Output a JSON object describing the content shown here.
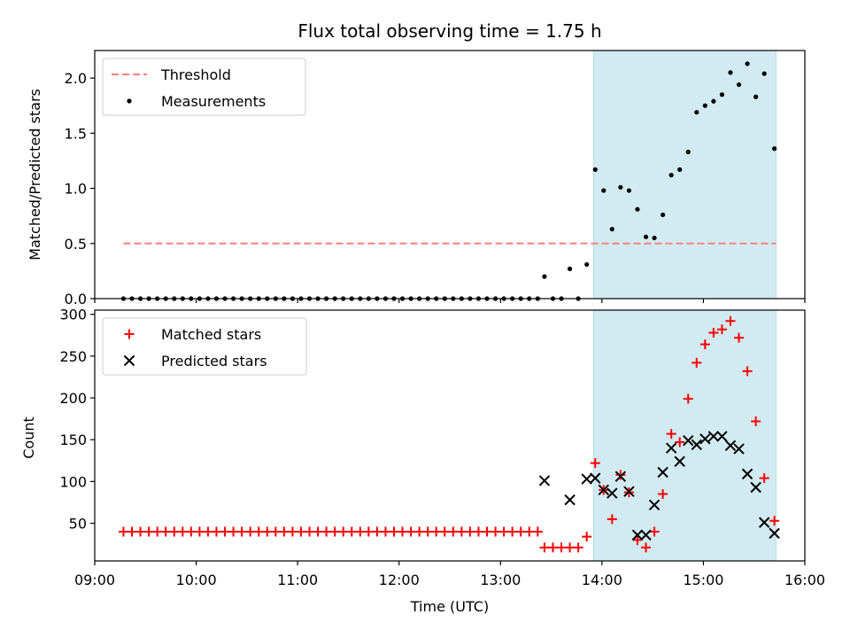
{
  "chart_data": [
    {
      "type": "scatter",
      "title": "Flux total observing time = 1.75 h",
      "xlabel": "",
      "ylabel": "Matched/Predicted stars",
      "ylim": [
        0,
        2.25
      ],
      "yticks": [
        "0.0",
        "0.5",
        "1.0",
        "1.5",
        "2.0"
      ],
      "ytick_values": [
        0,
        0.5,
        1.0,
        1.5,
        2.0
      ],
      "xlim": [
        "09:00",
        "16:00"
      ],
      "shaded_region": [
        "13:55",
        "15:43"
      ],
      "shade_color": "#add8e6",
      "grid": false,
      "legend_position": "upper left",
      "legend": [
        {
          "label": "Threshold",
          "marker": "dashed-line",
          "color": "#ff7f7f"
        },
        {
          "label": "Measurements",
          "marker": "dot",
          "color": "#000000"
        }
      ],
      "threshold": {
        "value": 0.5,
        "x_start": "09:17",
        "x_end": "15:43"
      },
      "series": [
        {
          "name": "Measurements",
          "color": "#000000",
          "x": [
            "09:17",
            "09:22",
            "09:27",
            "09:32",
            "09:37",
            "09:42",
            "09:47",
            "09:52",
            "09:57",
            "10:02",
            "10:07",
            "10:12",
            "10:17",
            "10:22",
            "10:27",
            "10:32",
            "10:37",
            "10:42",
            "10:47",
            "10:52",
            "10:57",
            "11:02",
            "11:07",
            "11:12",
            "11:17",
            "11:22",
            "11:27",
            "11:32",
            "11:37",
            "11:42",
            "11:47",
            "11:52",
            "11:57",
            "12:02",
            "12:07",
            "12:12",
            "12:17",
            "12:22",
            "12:27",
            "12:32",
            "12:37",
            "12:42",
            "12:47",
            "12:52",
            "12:57",
            "13:02",
            "13:07",
            "13:12",
            "13:17",
            "13:22",
            "13:26",
            "13:31",
            "13:36",
            "13:41",
            "13:46",
            "13:51",
            "13:56",
            "14:01",
            "14:06",
            "14:11",
            "14:16",
            "14:21",
            "14:26",
            "14:31",
            "14:36",
            "14:41",
            "14:46",
            "14:51",
            "14:56",
            "15:01",
            "15:06",
            "15:11",
            "15:16",
            "15:21",
            "15:26",
            "15:31",
            "15:36",
            "15:42"
          ],
          "y": [
            0,
            0,
            0,
            0,
            0,
            0,
            0,
            0,
            0,
            0,
            0,
            0,
            0,
            0,
            0,
            0,
            0,
            0,
            0,
            0,
            0,
            0,
            0,
            0,
            0,
            0,
            0,
            0,
            0,
            0,
            0,
            0,
            0,
            0,
            0,
            0,
            0,
            0,
            0,
            0,
            0,
            0,
            0,
            0,
            0,
            0,
            0,
            0,
            0,
            0,
            0.2,
            0,
            0,
            0.27,
            0,
            0.31,
            1.17,
            0.98,
            0.63,
            1.01,
            0.98,
            0.81,
            0.56,
            0.55,
            0.76,
            1.12,
            1.17,
            1.33,
            1.69,
            1.75,
            1.79,
            1.85,
            2.05,
            1.94,
            2.13,
            1.83,
            2.04,
            1.36
          ]
        }
      ]
    },
    {
      "type": "scatter",
      "title": "",
      "xlabel": "Time (UTC)",
      "ylabel": "Count",
      "ylim": [
        5,
        305
      ],
      "yticks": [
        "50",
        "100",
        "150",
        "200",
        "250",
        "300"
      ],
      "ytick_values": [
        50,
        100,
        150,
        200,
        250,
        300
      ],
      "xlim": [
        "09:00",
        "16:00"
      ],
      "xticks": [
        "09:00",
        "10:00",
        "11:00",
        "12:00",
        "13:00",
        "14:00",
        "15:00",
        "16:00"
      ],
      "shaded_region": [
        "13:55",
        "15:43"
      ],
      "shade_color": "#add8e6",
      "grid": false,
      "legend_position": "upper left",
      "legend": [
        {
          "label": "Matched stars",
          "marker": "plus",
          "color": "#ff0000"
        },
        {
          "label": "Predicted stars",
          "marker": "x",
          "color": "#000000"
        }
      ],
      "series": [
        {
          "name": "Matched stars",
          "color": "#ff0000",
          "x": [
            "09:17",
            "09:22",
            "09:27",
            "09:32",
            "09:37",
            "09:42",
            "09:47",
            "09:52",
            "09:57",
            "10:02",
            "10:07",
            "10:12",
            "10:17",
            "10:22",
            "10:27",
            "10:32",
            "10:37",
            "10:42",
            "10:47",
            "10:52",
            "10:57",
            "11:02",
            "11:07",
            "11:12",
            "11:17",
            "11:22",
            "11:27",
            "11:32",
            "11:37",
            "11:42",
            "11:47",
            "11:52",
            "11:57",
            "12:02",
            "12:07",
            "12:12",
            "12:17",
            "12:22",
            "12:27",
            "12:32",
            "12:37",
            "12:42",
            "12:47",
            "12:52",
            "12:57",
            "13:02",
            "13:07",
            "13:12",
            "13:17",
            "13:22",
            "13:26",
            "13:31",
            "13:36",
            "13:41",
            "13:46",
            "13:51",
            "13:56",
            "14:01",
            "14:06",
            "14:11",
            "14:16",
            "14:21",
            "14:26",
            "14:31",
            "14:36",
            "14:41",
            "14:46",
            "14:51",
            "14:56",
            "15:01",
            "15:06",
            "15:11",
            "15:16",
            "15:21",
            "15:26",
            "15:31",
            "15:36",
            "15:42"
          ],
          "y": [
            40,
            40,
            40,
            40,
            40,
            40,
            40,
            40,
            40,
            40,
            40,
            40,
            40,
            40,
            40,
            40,
            40,
            40,
            40,
            40,
            40,
            40,
            40,
            40,
            40,
            40,
            40,
            40,
            40,
            40,
            40,
            40,
            40,
            40,
            40,
            40,
            40,
            40,
            40,
            40,
            40,
            40,
            40,
            40,
            40,
            40,
            40,
            40,
            40,
            40,
            21,
            21,
            21,
            21,
            21,
            34,
            122,
            90,
            55,
            108,
            87,
            30,
            21,
            40,
            85,
            157,
            147,
            199,
            242,
            264,
            278,
            282,
            292,
            272,
            232,
            172,
            104,
            53
          ]
        },
        {
          "name": "Predicted stars",
          "color": "#000000",
          "x": [
            "13:26",
            "13:41",
            "13:51",
            "13:56",
            "14:01",
            "14:06",
            "14:11",
            "14:16",
            "14:21",
            "14:26",
            "14:31",
            "14:36",
            "14:41",
            "14:46",
            "14:51",
            "14:56",
            "15:01",
            "15:06",
            "15:11",
            "15:16",
            "15:21",
            "15:26",
            "15:31",
            "15:36",
            "15:42"
          ],
          "y": [
            101,
            78,
            103,
            104,
            90,
            86,
            106,
            88,
            36,
            36,
            72,
            111,
            140,
            124,
            149,
            144,
            151,
            154,
            154,
            143,
            139,
            109,
            93,
            51,
            38
          ]
        }
      ]
    }
  ]
}
